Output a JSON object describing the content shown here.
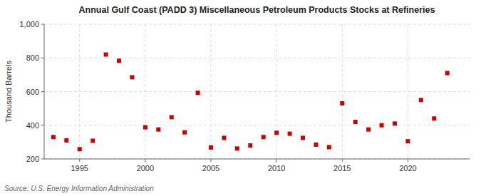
{
  "chart_data": {
    "type": "scatter",
    "title": "Annual Gulf Coast (PADD 3) Miscellaneous Petroleum Products Stocks at Refineries",
    "y_label": "Thousand Barrels",
    "source": "Source: U.S. Energy Information Administration",
    "x": [
      1993,
      1994,
      1995,
      1996,
      1997,
      1998,
      1999,
      2000,
      2001,
      2002,
      2003,
      2004,
      2005,
      2006,
      2007,
      2008,
      2009,
      2010,
      2011,
      2012,
      2013,
      2014,
      2015,
      2016,
      2017,
      2018,
      2019,
      2020,
      2021,
      2022,
      2023
    ],
    "values": [
      330,
      310,
      258,
      308,
      820,
      783,
      685,
      388,
      375,
      448,
      358,
      593,
      268,
      325,
      262,
      280,
      330,
      355,
      350,
      325,
      285,
      270,
      530,
      420,
      375,
      400,
      410,
      305,
      550,
      440,
      710
    ],
    "color": "#cc0000",
    "marker": "square",
    "xlim": [
      1992.3,
      2024.7
    ],
    "xticks": [
      1995,
      2000,
      2005,
      2010,
      2015,
      2020
    ],
    "ylim": [
      200,
      1000
    ],
    "yticks": [
      200,
      400,
      600,
      800,
      {
        "value": 1000,
        "label": "1,000"
      }
    ],
    "grid": true
  }
}
